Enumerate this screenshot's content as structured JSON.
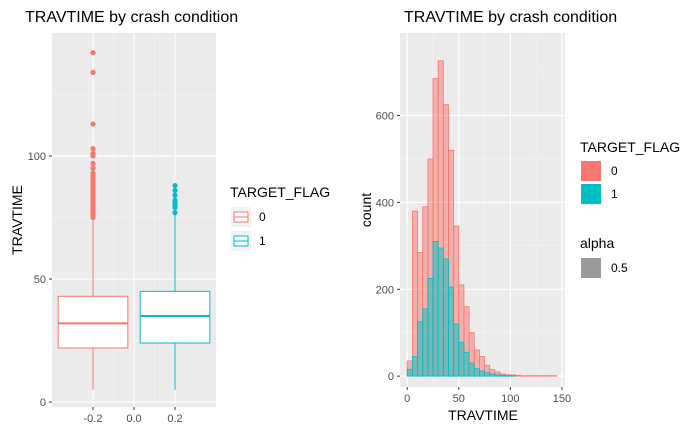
{
  "chart_data": [
    {
      "type": "box",
      "title": "TRAVTIME by crash condition",
      "xlabel": "",
      "ylabel": "TRAVTIME",
      "xlim": [
        -0.4,
        0.4
      ],
      "ylim": [
        -2,
        150
      ],
      "x_ticks": [
        -0.2,
        0.0,
        0.2
      ],
      "x_tick_labels": [
        "-0.2",
        "0.0",
        "0.2"
      ],
      "y_ticks": [
        0,
        50,
        100
      ],
      "y_tick_labels": [
        "0",
        "50",
        "100"
      ],
      "grid": true,
      "legend": {
        "title": "TARGET_FLAG",
        "position": "right",
        "entries": [
          {
            "label": "0",
            "color": "#F8766D"
          },
          {
            "label": "1",
            "color": "#00BFC4"
          }
        ]
      },
      "series": [
        {
          "name": "0",
          "color": "#F8766D",
          "x": -0.2,
          "width": 0.34,
          "min": 5,
          "q1": 22,
          "median": 32,
          "q3": 43,
          "max": 74,
          "outliers": [
            75,
            76,
            77,
            78,
            79,
            80,
            81,
            82,
            83,
            84,
            85,
            86,
            87,
            88,
            89,
            90,
            91,
            92,
            93,
            95,
            97,
            100,
            101,
            103,
            113,
            134,
            142
          ]
        },
        {
          "name": "1",
          "color": "#00BFC4",
          "x": 0.2,
          "width": 0.34,
          "min": 5,
          "q1": 24,
          "median": 35,
          "q3": 45,
          "max": 76,
          "outliers": [
            77,
            79,
            80,
            81,
            82,
            84,
            86,
            88
          ]
        }
      ]
    },
    {
      "type": "histogram",
      "title": "TRAVTIME by crash condition",
      "xlabel": "TRAVTIME",
      "ylabel": "count",
      "bin_width": 5,
      "xlim": [
        -7,
        153
      ],
      "ylim": [
        -25,
        790
      ],
      "x_ticks": [
        0,
        50,
        100,
        150
      ],
      "x_tick_labels": [
        "0",
        "50",
        "100",
        "150"
      ],
      "y_ticks": [
        0,
        200,
        400,
        600
      ],
      "y_tick_labels": [
        "0",
        "200",
        "400",
        "600"
      ],
      "grid": true,
      "legends": [
        {
          "title": "TARGET_FLAG",
          "position": "right",
          "entries": [
            {
              "label": "0",
              "color": "#F8766D"
            },
            {
              "label": "1",
              "color": "#00BFC4"
            }
          ]
        },
        {
          "title": "alpha",
          "position": "right",
          "entries": [
            {
              "label": "0.5",
              "color": "#9A9A9A"
            }
          ]
        }
      ],
      "bin_starts": [
        0,
        5,
        10,
        15,
        20,
        25,
        30,
        35,
        40,
        45,
        50,
        55,
        60,
        65,
        70,
        75,
        80,
        85,
        90,
        95,
        100,
        105,
        110,
        115,
        120,
        125,
        130,
        135,
        140
      ],
      "series": [
        {
          "name": "0",
          "color": "#F8766D",
          "values": [
            35,
            380,
            285,
            390,
            500,
            685,
            726,
            625,
            520,
            345,
            210,
            160,
            100,
            60,
            45,
            25,
            15,
            10,
            5,
            3,
            3,
            2,
            1,
            1,
            1,
            1,
            1,
            1,
            1
          ]
        },
        {
          "name": "1",
          "color": "#00BFC4",
          "values": [
            15,
            45,
            125,
            155,
            225,
            310,
            295,
            270,
            205,
            120,
            78,
            55,
            30,
            17,
            12,
            8,
            5,
            3,
            2,
            1,
            1,
            0,
            0,
            0,
            0,
            0,
            0,
            0,
            0
          ]
        }
      ]
    }
  ]
}
